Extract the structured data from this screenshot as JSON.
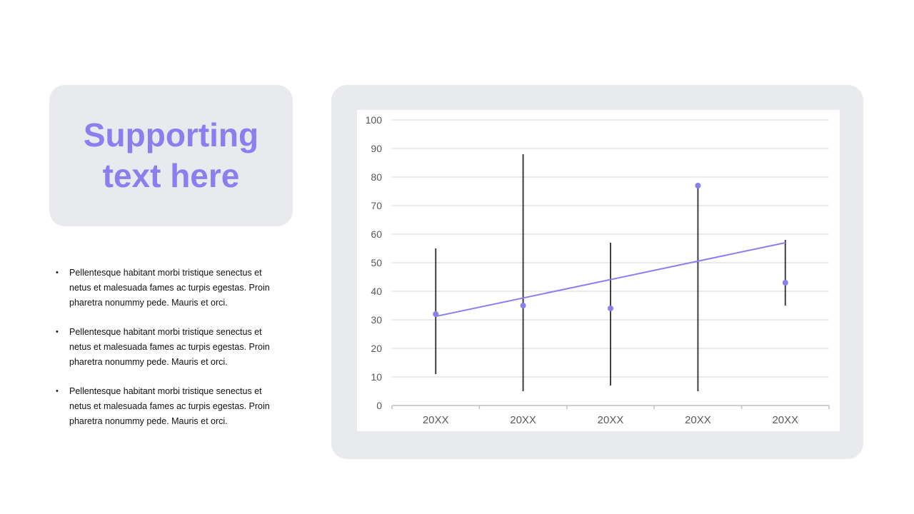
{
  "slide": {
    "title": "Supporting\ntext here",
    "bullets": [
      "Pellentesque habitant morbi tristique senectus et netus et malesuada fames ac turpis egestas. Proin pharetra nonummy pede. Mauris et orci.",
      "Pellentesque habitant morbi tristique senectus et netus et malesuada fames ac turpis egestas. Proin pharetra nonummy pede. Mauris et orci.",
      "Pellentesque habitant morbi tristique senectus et netus et malesuada fames ac turpis egestas. Proin pharetra nonummy pede. Mauris et orci."
    ]
  },
  "colors": {
    "accent": "#8b7ff0",
    "card_bg": "#e9eaed",
    "errorbar": "#404040",
    "grid": "#d4d4d4",
    "axis_text": "#595959"
  },
  "chart_data": {
    "type": "scatter",
    "categories": [
      "20XX",
      "20XX",
      "20XX",
      "20XX",
      "20XX"
    ],
    "ylim": [
      0,
      100
    ],
    "yticks": [
      0,
      10,
      20,
      30,
      40,
      50,
      60,
      70,
      80,
      90,
      100
    ],
    "grid": true,
    "series": [
      {
        "values": [
          32,
          35,
          34,
          77,
          43
        ],
        "error_high": [
          55,
          88,
          57,
          77,
          58
        ],
        "error_low": [
          11,
          5,
          7,
          5,
          35
        ]
      }
    ],
    "trendline": {
      "type": "linear",
      "start": 31.2,
      "end": 57.0
    }
  }
}
